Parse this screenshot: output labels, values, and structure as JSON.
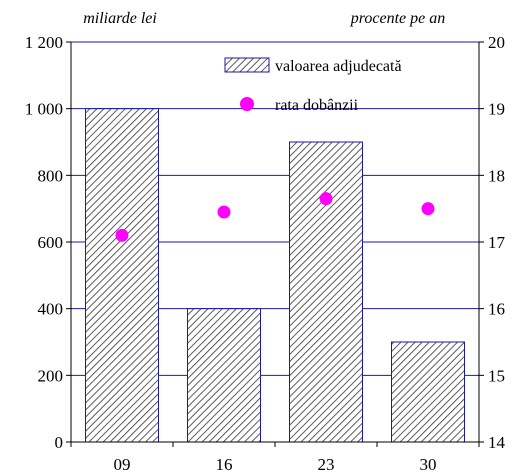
{
  "chart_data": {
    "type": "bar",
    "categories": [
      "09",
      "16",
      "23",
      "30"
    ],
    "left_axis": {
      "unit_label": "miliarde lei",
      "range": [
        0,
        1200
      ],
      "ticks": [
        0,
        200,
        400,
        600,
        800,
        1000,
        1200
      ],
      "tick_labels": [
        "0",
        "200",
        "400",
        "600",
        "800",
        "1 000",
        "1 200"
      ]
    },
    "right_axis": {
      "unit_label": "procente pe an",
      "range": [
        14,
        20
      ],
      "ticks": [
        14,
        15,
        16,
        17,
        18,
        19,
        20
      ],
      "tick_labels": [
        "14",
        "15",
        "16",
        "17",
        "18",
        "19",
        "20"
      ]
    },
    "series": [
      {
        "name": "valoarea adjudecată",
        "type": "bar",
        "axis": "left",
        "values": [
          1000,
          400,
          900,
          300
        ],
        "color": "#1a1aa6",
        "pattern": "diagonal-hatch"
      },
      {
        "name": "rata dobânzii",
        "type": "scatter",
        "axis": "right",
        "values": [
          17.1,
          17.45,
          17.65,
          17.5
        ],
        "color": "#ff00ff"
      }
    ],
    "grid": true,
    "legend_position": "top-right"
  }
}
